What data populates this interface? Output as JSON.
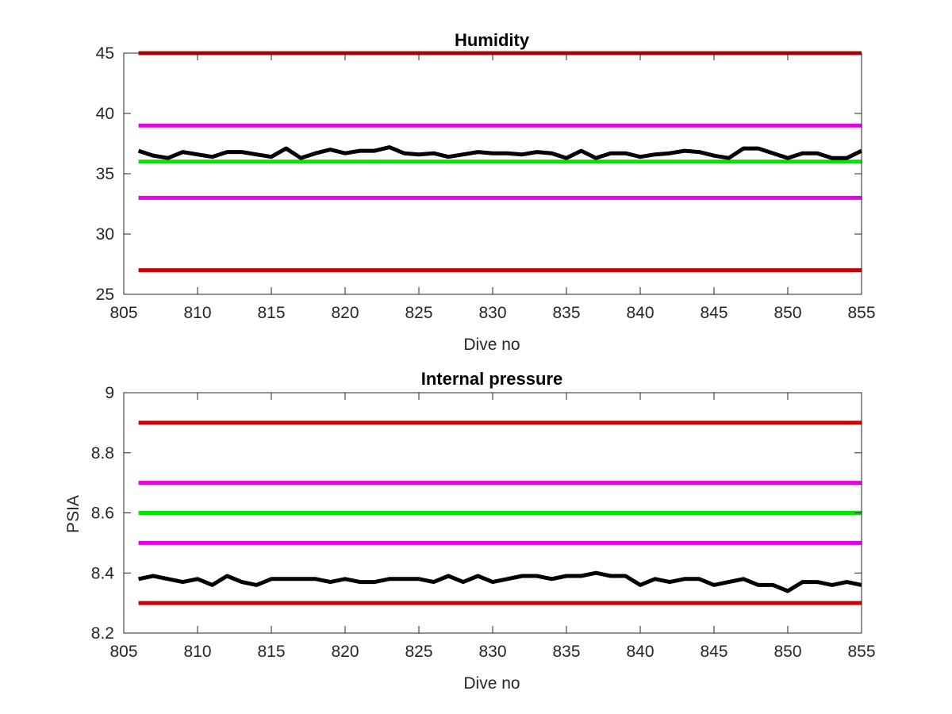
{
  "chart_data": [
    {
      "type": "line",
      "title": "Humidity",
      "xlabel": "Dive no",
      "ylabel": "",
      "xlim": [
        805,
        855
      ],
      "ylim": [
        25,
        45
      ],
      "xticks": [
        805,
        810,
        815,
        820,
        825,
        830,
        835,
        840,
        845,
        850,
        855
      ],
      "yticks": [
        25,
        30,
        35,
        40,
        45
      ],
      "grid": false,
      "thresholds": [
        {
          "value": 45,
          "color": "#cc0000"
        },
        {
          "value": 39,
          "color": "#e600e6"
        },
        {
          "value": 36,
          "color": "#00e600"
        },
        {
          "value": 33,
          "color": "#e600e6"
        },
        {
          "value": 27,
          "color": "#cc0000"
        }
      ],
      "series": [
        {
          "color": "#000000",
          "x": [
            806,
            807,
            808,
            809,
            810,
            811,
            812,
            813,
            814,
            815,
            816,
            817,
            818,
            819,
            820,
            821,
            822,
            823,
            824,
            825,
            826,
            827,
            828,
            829,
            830,
            831,
            832,
            833,
            834,
            835,
            836,
            837,
            838,
            839,
            840,
            841,
            842,
            843,
            844,
            845,
            846,
            847,
            848,
            849,
            850,
            851,
            852,
            853,
            854,
            855
          ],
          "y": [
            36.9,
            36.5,
            36.3,
            36.8,
            36.6,
            36.4,
            36.8,
            36.8,
            36.6,
            36.4,
            37.1,
            36.3,
            36.7,
            37.0,
            36.7,
            36.9,
            36.9,
            37.2,
            36.7,
            36.6,
            36.7,
            36.4,
            36.6,
            36.8,
            36.7,
            36.7,
            36.6,
            36.8,
            36.7,
            36.3,
            36.9,
            36.3,
            36.7,
            36.7,
            36.4,
            36.6,
            36.7,
            36.9,
            36.8,
            36.5,
            36.3,
            37.1,
            37.1,
            36.7,
            36.3,
            36.7,
            36.7,
            36.3,
            36.3,
            36.9
          ]
        }
      ]
    },
    {
      "type": "line",
      "title": "Internal pressure",
      "xlabel": "Dive no",
      "ylabel": "PSIA",
      "xlim": [
        805,
        855
      ],
      "ylim": [
        8.2,
        9
      ],
      "xticks": [
        805,
        810,
        815,
        820,
        825,
        830,
        835,
        840,
        845,
        850,
        855
      ],
      "yticks": [
        "8.2",
        "8.4",
        "8.6",
        "8.8",
        "9"
      ],
      "grid": false,
      "thresholds": [
        {
          "value": 8.9,
          "color": "#cc0000"
        },
        {
          "value": 8.7,
          "color": "#e600e6"
        },
        {
          "value": 8.6,
          "color": "#00e600"
        },
        {
          "value": 8.5,
          "color": "#e600e6"
        },
        {
          "value": 8.3,
          "color": "#cc0000"
        }
      ],
      "series": [
        {
          "color": "#000000",
          "x": [
            806,
            807,
            808,
            809,
            810,
            811,
            812,
            813,
            814,
            815,
            816,
            817,
            818,
            819,
            820,
            821,
            822,
            823,
            824,
            825,
            826,
            827,
            828,
            829,
            830,
            831,
            832,
            833,
            834,
            835,
            836,
            837,
            838,
            839,
            840,
            841,
            842,
            843,
            844,
            845,
            846,
            847,
            848,
            849,
            850,
            851,
            852,
            853,
            854,
            855
          ],
          "y": [
            8.38,
            8.39,
            8.38,
            8.37,
            8.38,
            8.36,
            8.39,
            8.37,
            8.36,
            8.38,
            8.38,
            8.38,
            8.38,
            8.37,
            8.38,
            8.37,
            8.37,
            8.38,
            8.38,
            8.38,
            8.37,
            8.39,
            8.37,
            8.39,
            8.37,
            8.38,
            8.39,
            8.39,
            8.38,
            8.39,
            8.39,
            8.4,
            8.39,
            8.39,
            8.36,
            8.38,
            8.37,
            8.38,
            8.38,
            8.36,
            8.37,
            8.38,
            8.36,
            8.36,
            8.34,
            8.37,
            8.37,
            8.36,
            8.37,
            8.36
          ]
        }
      ]
    }
  ]
}
